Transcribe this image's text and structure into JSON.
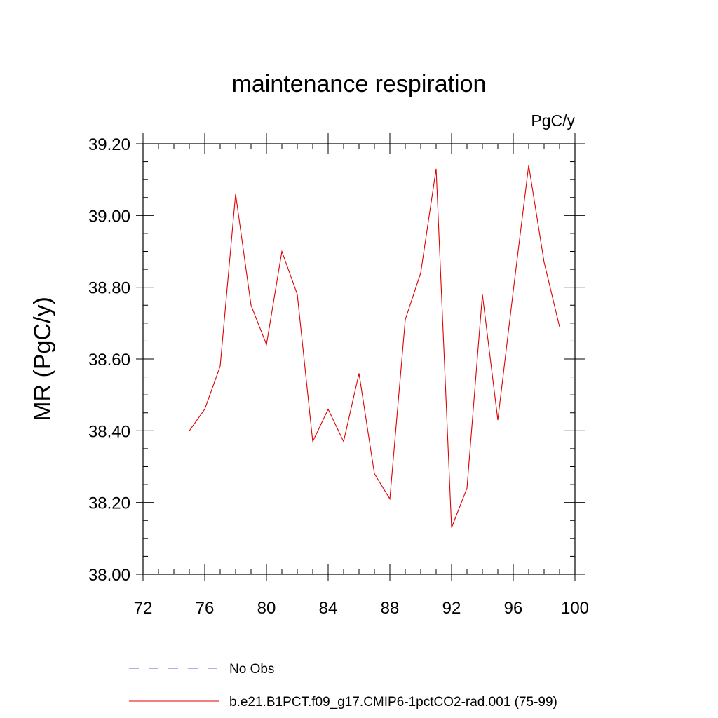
{
  "chart_data": {
    "type": "line",
    "title": "maintenance respiration",
    "units_label": "PgC/y",
    "ylabel": "MR  (PgC/y)",
    "xlabel": "",
    "xlim": [
      72,
      100
    ],
    "ylim": [
      38.0,
      39.2
    ],
    "x_ticks": [
      72,
      76,
      80,
      84,
      88,
      92,
      96,
      100
    ],
    "x_tick_labels": [
      "72",
      "76",
      "80",
      "84",
      "88",
      "92",
      "96",
      "100"
    ],
    "y_ticks": [
      38.0,
      38.2,
      38.4,
      38.6,
      38.8,
      39.0,
      39.2
    ],
    "y_tick_labels": [
      "38.00",
      "38.20",
      "38.40",
      "38.60",
      "38.80",
      "39.00",
      "39.20"
    ],
    "grid": false,
    "legend_position": "bottom",
    "series": [
      {
        "name": "b.e21.B1PCT.f09_g17.CMIP6-1pctCO2-rad.001 (75-99)",
        "color": "#e00000",
        "style": "solid",
        "x": [
          75,
          76,
          77,
          78,
          79,
          80,
          81,
          82,
          83,
          84,
          85,
          86,
          87,
          88,
          89,
          90,
          91,
          92,
          93,
          94,
          95,
          96,
          97,
          98,
          99
        ],
        "y": [
          38.4,
          38.46,
          38.58,
          39.06,
          38.75,
          38.64,
          38.9,
          38.78,
          38.37,
          38.46,
          38.37,
          38.56,
          38.28,
          38.21,
          38.71,
          38.84,
          39.13,
          38.13,
          38.24,
          38.78,
          38.43,
          38.79,
          39.14,
          38.87,
          38.69
        ]
      }
    ],
    "legend": [
      {
        "label": "No Obs",
        "color": "#6a5acd",
        "style": "dashed"
      },
      {
        "label": "b.e21.B1PCT.f09_g17.CMIP6-1pctCO2-rad.001 (75-99)",
        "color": "#e00000",
        "style": "solid"
      }
    ]
  }
}
